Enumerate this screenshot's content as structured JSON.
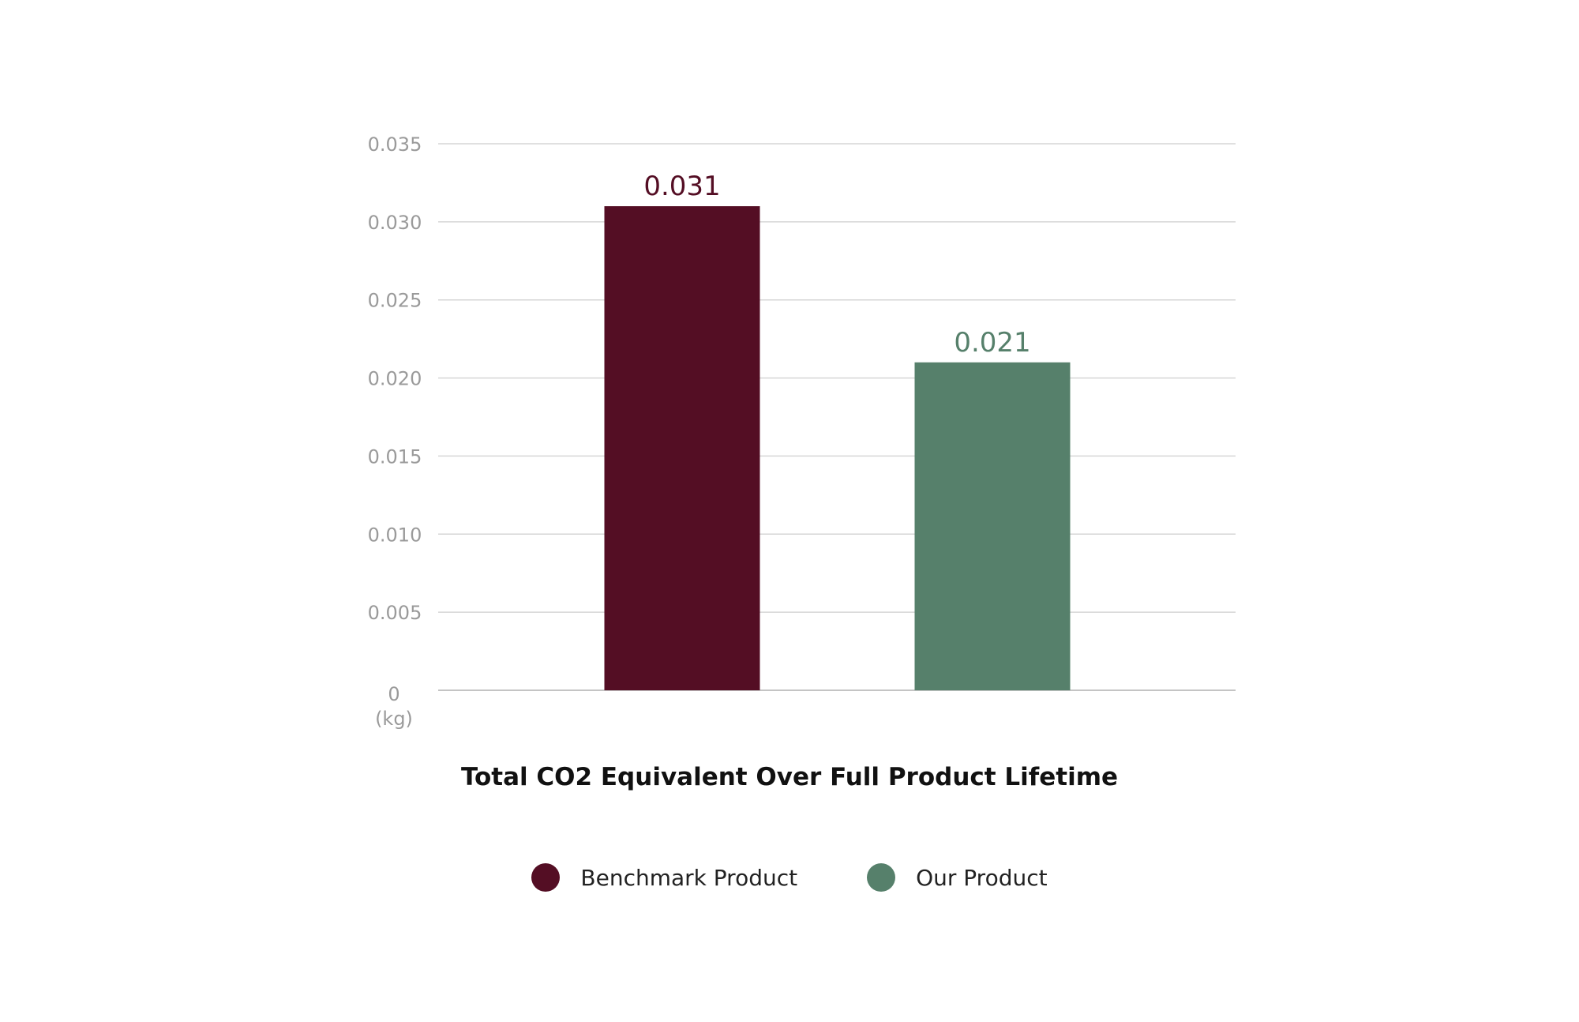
{
  "chart_data": {
    "type": "bar",
    "title": "Total CO2 Equivalent Over Full Product Lifetime",
    "categories": [
      "Benchmark Product",
      "Our Product"
    ],
    "values": [
      0.031,
      0.021
    ],
    "data_labels": [
      "0.031",
      "0.021"
    ],
    "colors": [
      "#540e24",
      "#56806b"
    ],
    "yunit": "(kg)",
    "ylim": [
      0,
      0.035
    ],
    "yticks": [
      0,
      0.005,
      0.01,
      0.015,
      0.02,
      0.025,
      0.03,
      0.035
    ],
    "ytick_labels": [
      "0",
      "0.005",
      "0.010",
      "0.015",
      "0.020",
      "0.025",
      "0.030",
      "0.035"
    ],
    "grid": true,
    "legend_position": "bottom-center",
    "legend": [
      {
        "label": "Benchmark Product",
        "color": "#540e24"
      },
      {
        "label": "Our Product",
        "color": "#56806b"
      }
    ]
  }
}
